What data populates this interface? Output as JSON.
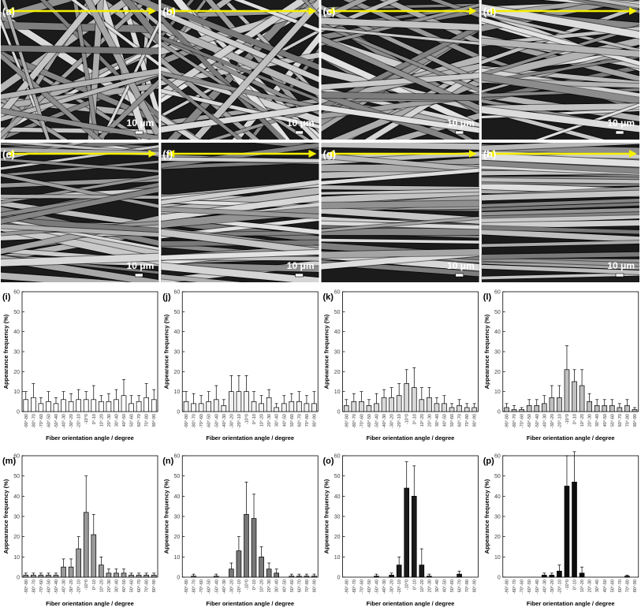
{
  "images": [
    {
      "label": "(a)",
      "scale": "10 μm"
    },
    {
      "label": "(b)",
      "scale": "10 μm"
    },
    {
      "label": "(c)",
      "scale": "10 μm"
    },
    {
      "label": "(d)",
      "scale": "10 μm"
    },
    {
      "label": "(e)",
      "scale": "10 μm"
    },
    {
      "label": "(f)",
      "scale": "10 μm"
    },
    {
      "label": "(g)",
      "scale": "10 μm"
    },
    {
      "label": "(h)",
      "scale": "10 μm"
    }
  ],
  "chart_data": [
    {
      "type": "bar",
      "title": "(i)",
      "y_label": "Appearance frequency (%)",
      "x_label": "Fiber orientation angle / degree",
      "color": "#ffffff",
      "categories": [
        "-90°-80",
        "-80°-70",
        "-70°-60",
        "-60°-50",
        "-50°-40",
        "-40°-30",
        "-30°-20",
        "-20°-10",
        "-10°0",
        "0°-10",
        "10°-20",
        "20°-30",
        "30°-40",
        "40°-50",
        "50°-60",
        "60°-70",
        "70°-80",
        "80°-90"
      ],
      "values": [
        6,
        7,
        4,
        5,
        4,
        6,
        5,
        6,
        6,
        6,
        5,
        5,
        6,
        8,
        4,
        5,
        7,
        6
      ],
      "errors": [
        4,
        7,
        3,
        5,
        3,
        4,
        4,
        5,
        4,
        7,
        3,
        4,
        5,
        8,
        4,
        3,
        7,
        5
      ],
      "ylim": [
        0,
        60
      ],
      "yticks": [
        0,
        10,
        20,
        30,
        40,
        50,
        60
      ]
    },
    {
      "type": "bar",
      "title": "(j)",
      "y_label": "Appearance frequency (%)",
      "x_label": "Fiber orientation angle / degree",
      "color": "#f2f2f2",
      "categories": [
        "-90°-80",
        "-80°-70",
        "-70°-60",
        "-60°-50",
        "-50°-40",
        "-40°-30",
        "-30°-20",
        "-20°-10",
        "-10°0",
        "0°-10",
        "10°-20",
        "20°-30",
        "30°-40",
        "40°-50",
        "50°-60",
        "60°-70",
        "70°-80",
        "80°-90"
      ],
      "values": [
        5,
        4,
        4,
        5,
        6,
        3,
        10,
        10,
        10,
        5,
        4,
        7,
        2,
        4,
        5,
        5,
        4,
        4
      ],
      "errors": [
        5,
        5,
        4,
        5,
        7,
        3,
        8,
        8,
        8,
        5,
        4,
        4,
        2,
        4,
        4,
        5,
        4,
        6
      ],
      "ylim": [
        0,
        60
      ],
      "yticks": [
        0,
        10,
        20,
        30,
        40,
        50,
        60
      ]
    },
    {
      "type": "bar",
      "title": "(k)",
      "y_label": "Appearance frequency (%)",
      "x_label": "Fiber orientation angle / degree",
      "color": "#d9d9d9",
      "categories": [
        "-90°-80",
        "-80°-70",
        "-70°-60",
        "-60°-50",
        "-50°-40",
        "-40°-30",
        "-30°-20",
        "-20°-10",
        "-10°0",
        "0°-10",
        "10°-20",
        "20°-30",
        "30°-40",
        "40°-50",
        "50°-60",
        "60°-70",
        "70°-80",
        "80°-90"
      ],
      "values": [
        3,
        5,
        5,
        3,
        4,
        7,
        7,
        8,
        14,
        12,
        6,
        7,
        4,
        4,
        2,
        3,
        2,
        2
      ],
      "errors": [
        3,
        4,
        5,
        3,
        5,
        4,
        5,
        6,
        7,
        10,
        6,
        5,
        3,
        4,
        2,
        3,
        2,
        2
      ],
      "ylim": [
        0,
        60
      ],
      "yticks": [
        0,
        10,
        20,
        30,
        40,
        50,
        60
      ]
    },
    {
      "type": "bar",
      "title": "(l)",
      "y_label": "Appearance frequency (%)",
      "x_label": "Fiber orientation angle / degree",
      "color": "#bfbfbf",
      "categories": [
        "-90°-80",
        "-80°-70",
        "-70°-60",
        "-60°-50",
        "-50°-40",
        "-40°-30",
        "-30°-20",
        "-20°-10",
        "-10°0",
        "0°-10",
        "10°-20",
        "20°-30",
        "30°-40",
        "40°-50",
        "50°-60",
        "60°-70",
        "70°-80",
        "80°-90"
      ],
      "values": [
        2,
        1,
        1,
        3,
        3,
        4,
        7,
        7,
        21,
        15,
        13,
        5,
        3,
        3,
        3,
        2,
        3,
        1
      ],
      "errors": [
        2,
        2,
        1,
        3,
        3,
        4,
        6,
        6,
        12,
        6,
        8,
        4,
        3,
        3,
        3,
        2,
        3,
        1
      ],
      "ylim": [
        0,
        60
      ],
      "yticks": [
        0,
        10,
        20,
        30,
        40,
        50,
        60
      ]
    },
    {
      "type": "bar",
      "title": "(m)",
      "y_label": "Appearance frequency (%)",
      "x_label": "Fiber orientation angle / degree",
      "color": "#999999",
      "categories": [
        "-90°-80",
        "-80°-70",
        "-70°-60",
        "-60°-50",
        "-50°-40",
        "-40°-30",
        "-30°-20",
        "-20°-10",
        "-10°0",
        "0°-10",
        "10°-20",
        "20°-30",
        "30°-40",
        "40°-50",
        "50°-60",
        "60°-70",
        "70°-80",
        "80°-90"
      ],
      "values": [
        1,
        1,
        1,
        1,
        1,
        5,
        5,
        14,
        32,
        21,
        6,
        2,
        2,
        2,
        1,
        1,
        1,
        1
      ],
      "errors": [
        1,
        1,
        1,
        1,
        1,
        4,
        4,
        6,
        18,
        10,
        4,
        2,
        2,
        2,
        1,
        1,
        1,
        1
      ],
      "ylim": [
        0,
        60
      ],
      "yticks": [
        0,
        10,
        20,
        30,
        40,
        50,
        60
      ]
    },
    {
      "type": "bar",
      "title": "(n)",
      "y_label": "Appearance frequency (%)",
      "x_label": "Fiber orientation angle / degree",
      "color": "#777777",
      "categories": [
        "-90°-80",
        "-80°-70",
        "-70°-60",
        "-60°-50",
        "-50°-40",
        "-40°-30",
        "-30°-20",
        "-20°-10",
        "-10°0",
        "0°-10",
        "10°-20",
        "20°-30",
        "30°-40",
        "40°-50",
        "50°-60",
        "60°-70",
        "70°-80",
        "80°-90"
      ],
      "values": [
        0,
        0.5,
        0,
        0,
        0.5,
        0,
        4,
        13,
        31,
        29,
        10,
        4,
        2,
        0,
        0.5,
        0.5,
        0.5,
        0.5
      ],
      "errors": [
        0,
        1,
        0,
        0,
        1,
        0,
        3,
        7,
        16,
        12,
        5,
        3,
        2,
        0,
        1,
        1,
        1,
        1
      ],
      "ylim": [
        0,
        60
      ],
      "yticks": [
        0,
        10,
        20,
        30,
        40,
        50,
        60
      ]
    },
    {
      "type": "bar",
      "title": "(o)",
      "y_label": "Appearance frequency (%)",
      "x_label": "Fiber orientation angle / degree",
      "color": "#1a1a1a",
      "categories": [
        "-90°-80",
        "-80°-70",
        "-70°-60",
        "-60°-50",
        "-50°-40",
        "-40°-30",
        "-30°-20",
        "-20°-10",
        "-10°0",
        "0°-10",
        "10°-20",
        "20°-30",
        "30°-40",
        "40°-50",
        "50°-60",
        "60°-70",
        "70°-80",
        "80°-90"
      ],
      "values": [
        0,
        0,
        0,
        0,
        0.5,
        0,
        1,
        6,
        44,
        40,
        6,
        0.5,
        0,
        0,
        0,
        1.5,
        0,
        0
      ],
      "errors": [
        0,
        0,
        0,
        0,
        1,
        0,
        1,
        4,
        13,
        15,
        8,
        1,
        0,
        0,
        0,
        1.5,
        0,
        0
      ],
      "ylim": [
        0,
        60
      ],
      "yticks": [
        0,
        10,
        20,
        30,
        40,
        50,
        60
      ]
    },
    {
      "type": "bar",
      "title": "(p)",
      "y_label": "Appearance frequency (%)",
      "x_label": "Fiber orientation angle / degree",
      "color": "#0d0d0d",
      "categories": [
        "-90°-80",
        "-80°-70",
        "-70°-60",
        "-60°-50",
        "-50°-40",
        "-40°-30",
        "-30°-20",
        "-20°-10",
        "-10°0",
        "0°-10",
        "10°-20",
        "20°-30",
        "30°-40",
        "40°-50",
        "50°-60",
        "60°-70",
        "70°-80",
        "80°-90"
      ],
      "values": [
        0,
        0,
        0,
        0,
        0,
        1,
        1,
        3,
        45,
        47,
        2,
        0,
        0,
        0,
        0,
        0,
        0.5,
        0
      ],
      "errors": [
        0,
        0,
        0,
        0,
        0,
        1,
        1,
        3,
        15,
        15,
        3,
        0,
        0,
        0,
        0,
        0,
        0.5,
        0
      ],
      "ylim": [
        0,
        60
      ],
      "yticks": [
        0,
        10,
        20,
        30,
        40,
        50,
        60
      ]
    }
  ]
}
